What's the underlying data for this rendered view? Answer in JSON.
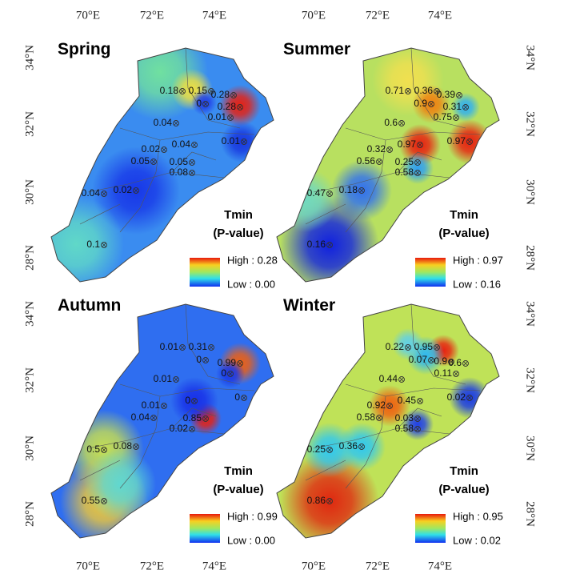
{
  "axes": {
    "lon": [
      "70°E",
      "72°E",
      "74°E"
    ],
    "lat": [
      "34°N",
      "32°N",
      "30°N",
      "28°N"
    ]
  },
  "panels": [
    {
      "title": "Spring",
      "legend": {
        "title": "Tmin",
        "subtitle": "(P-value)",
        "high": "High : 0.28",
        "low": "Low : 0.00"
      },
      "stations": [
        "0.18",
        "0.15",
        "0.28",
        "0",
        "0.28",
        "0.01",
        "0.04",
        "0.02",
        "0.04",
        "0.01",
        "0.05",
        "0.05",
        "0.08",
        "0.04",
        "0.02",
        "0.1"
      ]
    },
    {
      "title": "Summer",
      "legend": {
        "title": "Tmin",
        "subtitle": "(P-value)",
        "high": "High : 0.97",
        "low": "Low : 0.16"
      },
      "stations": [
        "0.71",
        "0.36",
        "0.39",
        "0.9",
        "0.31",
        "0.75",
        "0.6",
        "0.32",
        "0.97",
        "0.97",
        "0.56",
        "0.25",
        "0.58",
        "0.47",
        "0.18",
        "0.16"
      ]
    },
    {
      "title": "Autumn",
      "legend": {
        "title": "Tmin",
        "subtitle": "(P-value)",
        "high": "High : 0.99",
        "low": "Low : 0.00"
      },
      "stations": [
        "0.01",
        "0.31",
        "0",
        "0.99",
        "0",
        "0.01",
        "0.01",
        "0",
        "0",
        "0.04",
        "0.85",
        "0.02",
        "0.5",
        "0.08",
        "0.55"
      ]
    },
    {
      "title": "Winter",
      "legend": {
        "title": "Tmin",
        "subtitle": "(P-value)",
        "high": "High : 0.95",
        "low": "Low : 0.02"
      },
      "stations": [
        "0.22",
        "0.95",
        "0.07",
        "0.9",
        "0.6",
        "0.11",
        "0.44",
        "0.92",
        "0.45",
        "0.02",
        "0.58",
        "0.03",
        "0.58",
        "0.25",
        "0.36",
        "0.86"
      ]
    }
  ]
}
